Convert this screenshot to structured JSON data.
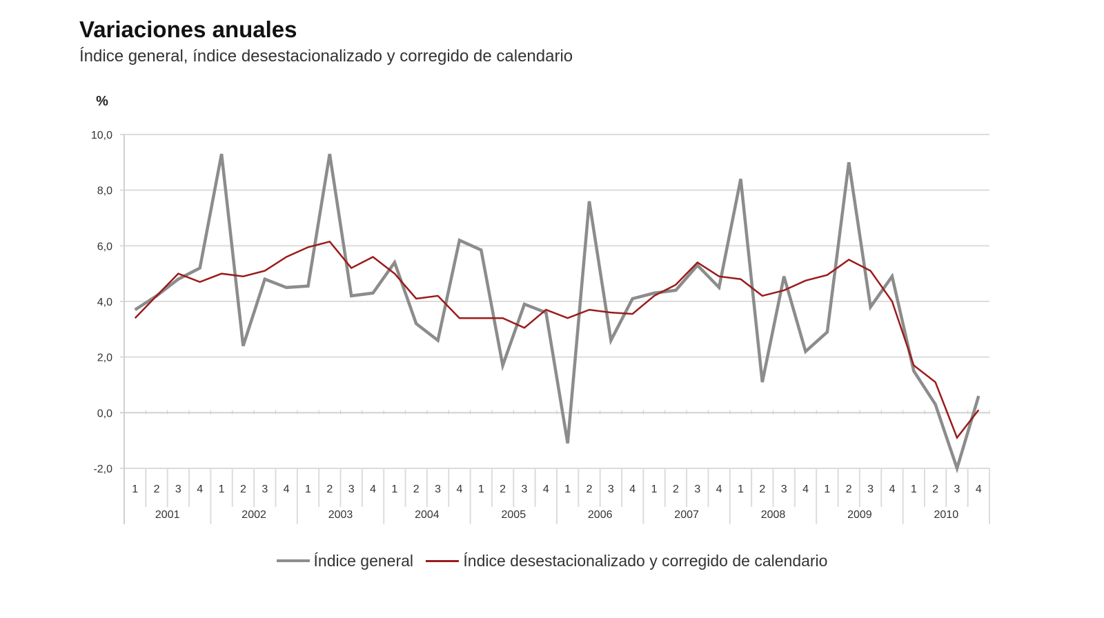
{
  "chart_data": {
    "type": "line",
    "title": "Variaciones anuales",
    "subtitle": "Índice general, índice desestacionalizado y corregido de calendario",
    "ylabel": "%",
    "xlabel": "",
    "ylim": [
      -2,
      10
    ],
    "yticks": [
      "10,0",
      "8,0",
      "6,0",
      "4,0",
      "2,0",
      "0,0",
      "-2,0"
    ],
    "ytick_values": [
      10,
      8,
      6,
      4,
      2,
      0,
      -2
    ],
    "grid": true,
    "legend": "bottom",
    "years": [
      "2001",
      "2002",
      "2003",
      "2004",
      "2005",
      "2006",
      "2007",
      "2008",
      "2009",
      "2010"
    ],
    "quarters": [
      "1",
      "2",
      "3",
      "4"
    ],
    "series": [
      {
        "name": "Índice general",
        "color": "#8c8c8c",
        "values": [
          3.7,
          4.2,
          4.8,
          5.2,
          9.3,
          2.4,
          4.8,
          4.5,
          4.55,
          9.3,
          4.2,
          4.3,
          5.4,
          3.2,
          2.6,
          6.2,
          5.85,
          1.7,
          3.9,
          3.6,
          -1.1,
          7.6,
          2.6,
          4.1,
          4.3,
          4.4,
          5.3,
          4.5,
          8.4,
          1.1,
          4.9,
          2.2,
          2.9,
          9.0,
          3.8,
          4.9,
          1.5,
          0.3,
          -2.0,
          0.6
        ]
      },
      {
        "name": "Índice desestacionalizado y corregido de calendario",
        "color": "#9b1b1b",
        "values": [
          3.4,
          4.2,
          5.0,
          4.7,
          5.0,
          4.9,
          5.1,
          5.6,
          5.95,
          6.15,
          5.2,
          5.6,
          5.0,
          4.1,
          4.2,
          3.4,
          3.4,
          3.4,
          3.05,
          3.7,
          3.4,
          3.7,
          3.6,
          3.55,
          4.2,
          4.6,
          5.4,
          4.9,
          4.8,
          4.2,
          4.4,
          4.75,
          4.95,
          5.5,
          5.1,
          4.0,
          1.7,
          1.1,
          -0.9,
          0.1
        ]
      }
    ]
  }
}
